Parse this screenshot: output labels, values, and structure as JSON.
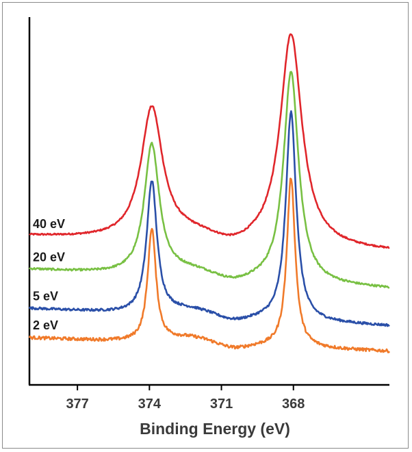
{
  "chart_data": {
    "type": "line",
    "xlabel": "Binding Energy (eV)",
    "ylabel": "",
    "title": "",
    "x_reversed": true,
    "xlim": [
      379.0,
      364.0
    ],
    "xticks": [
      377,
      374,
      371,
      368
    ],
    "grid": false,
    "legend": "inline labels at left of each trace",
    "series": [
      {
        "name": "40 eV",
        "color": "#e0262b",
        "offset": 0.0,
        "baseline_left": 0.0,
        "baseline_right": -0.08,
        "peaks": [
          {
            "x": 373.9,
            "height": 0.68,
            "width": 0.55
          },
          {
            "x": 368.1,
            "height": 1.09,
            "width": 0.55
          }
        ],
        "noise": 0.004
      },
      {
        "name": "20 eV",
        "color": "#78c043",
        "offset": -0.17,
        "baseline_left": 0.0,
        "baseline_right": -0.1,
        "peaks": [
          {
            "x": 373.9,
            "height": 0.67,
            "width": 0.38
          },
          {
            "x": 368.1,
            "height": 1.08,
            "width": 0.38
          }
        ],
        "noise": 0.005
      },
      {
        "name": "5 eV",
        "color": "#2a4fa8",
        "offset": -0.37,
        "baseline_left": 0.0,
        "baseline_right": -0.09,
        "peaks": [
          {
            "x": 373.9,
            "height": 0.68,
            "width": 0.26
          },
          {
            "x": 368.1,
            "height": 1.07,
            "width": 0.26
          }
        ],
        "noise": 0.006
      },
      {
        "name": "2 eV",
        "color": "#f07a2a",
        "offset": -0.52,
        "baseline_left": 0.0,
        "baseline_right": -0.07,
        "peaks": [
          {
            "x": 373.9,
            "height": 0.58,
            "width": 0.21
          },
          {
            "x": 368.1,
            "height": 0.87,
            "width": 0.21
          }
        ],
        "noise": 0.008
      }
    ]
  }
}
